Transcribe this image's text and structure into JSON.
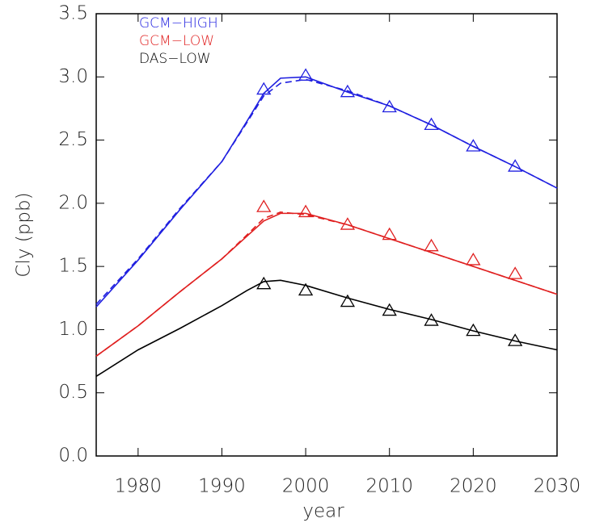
{
  "chart_data": {
    "type": "line",
    "x_label": "year",
    "y_label": "Cly (ppb)",
    "xlim": [
      1975,
      2030
    ],
    "xticks": [
      1980,
      1990,
      2000,
      2010,
      2020,
      2030
    ],
    "ylim": [
      0,
      3.5
    ],
    "yticks": [
      {
        "value": 0,
        "label": "0.0"
      },
      {
        "value": 0.5,
        "label": "0.5"
      },
      {
        "value": 1,
        "label": "1.0"
      },
      {
        "value": 1.5,
        "label": "1.5"
      },
      {
        "value": 2,
        "label": "2.0"
      },
      {
        "value": 2.5,
        "label": "2.5"
      },
      {
        "value": 3,
        "label": "3.0"
      },
      {
        "value": 3.5,
        "label": "3.5"
      }
    ],
    "x": [
      1975,
      1980,
      1985,
      1990,
      1993,
      1995,
      1997,
      2000,
      2005,
      2010,
      2015,
      2020,
      2025,
      2030
    ],
    "marker_x": [
      1995,
      2000,
      2005,
      2010,
      2015,
      2020,
      2025
    ],
    "series": [
      {
        "name": "GCM−HIGH",
        "color": "#2020e0",
        "values": [
          1.18,
          1.55,
          1.95,
          2.33,
          2.65,
          2.87,
          2.99,
          3.0,
          2.88,
          2.77,
          2.62,
          2.45,
          2.29,
          2.12
        ],
        "dashed_values": [
          1.2,
          1.56,
          1.96,
          2.33,
          2.64,
          2.85,
          2.95,
          2.98,
          2.89,
          2.77,
          2.62,
          2.45,
          2.29,
          2.12
        ],
        "marker_values": [
          2.9,
          3.01,
          2.88,
          2.76,
          2.62,
          2.45,
          2.29
        ]
      },
      {
        "name": "GCM−LOW",
        "color": "#e02020",
        "values": [
          0.79,
          1.03,
          1.3,
          1.56,
          1.74,
          1.86,
          1.92,
          1.92,
          1.83,
          1.72,
          1.61,
          1.5,
          1.39,
          1.28
        ],
        "dashed_values": [
          0.79,
          1.03,
          1.3,
          1.56,
          1.75,
          1.88,
          1.93,
          1.91,
          1.83,
          1.72,
          1.61,
          1.5,
          1.39,
          1.28
        ],
        "marker_values": [
          1.97,
          1.93,
          1.83,
          1.75,
          1.66,
          1.55,
          1.44
        ]
      },
      {
        "name": "DAS−LOW",
        "color": "#000000",
        "values": [
          0.63,
          0.84,
          1.01,
          1.19,
          1.31,
          1.38,
          1.39,
          1.35,
          1.25,
          1.16,
          1.08,
          0.99,
          0.91,
          0.84
        ],
        "marker_values": [
          1.36,
          1.31,
          1.22,
          1.15,
          1.07,
          0.99,
          0.91
        ]
      }
    ]
  }
}
